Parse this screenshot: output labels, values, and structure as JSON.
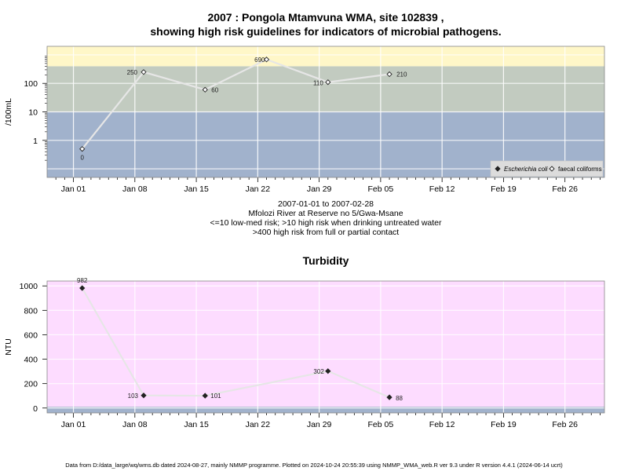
{
  "chart_data": [
    {
      "type": "line",
      "title_line1": "2007 : Pongola Mtamvuna WMA, site 102839 ,",
      "title_line2": "showing high risk guidelines for indicators of microbial pathogens.",
      "ylabel": "/100mL",
      "yscale": "log",
      "yticks": [
        "1",
        "10",
        "100"
      ],
      "xticks": [
        "Jan 01",
        "Jan 08",
        "Jan 15",
        "Jan 22",
        "Jan 29",
        "Feb 05",
        "Feb 12",
        "Feb 19",
        "Feb 26"
      ],
      "bands": [
        {
          "label": "<=10 low-med risk",
          "from": 0.05,
          "to": 10,
          "color": "#a1b2cc"
        },
        {
          "label": ">10 high risk when drinking untreated water",
          "from": 10,
          "to": 400,
          "color": "#c2cbc0"
        },
        {
          "label": ">400 high risk from full or partial contact",
          "from": 400,
          "to": 2000,
          "color": "#fff7c8"
        }
      ],
      "series": [
        {
          "name": "Escherichia coli",
          "marker": "filled-diamond",
          "x": [],
          "values": []
        },
        {
          "name": "faecal coliforms",
          "marker": "open-diamond",
          "x": [
            "2007-01-02",
            "2007-01-09",
            "2007-01-16",
            "2007-01-23",
            "2007-01-30",
            "2007-02-06"
          ],
          "values": [
            0.5,
            250,
            60,
            690,
            110,
            210
          ],
          "labels": [
            "0",
            "250",
            "60",
            "690",
            "110",
            "210"
          ]
        }
      ],
      "caption": [
        "2007-01-01 to 2007-02-28",
        "Mfolozi River at Reserve no 5/Gwa-Msane",
        "<=10 low-med risk; >10 high risk when drinking untreated water",
        ">400 high risk from full or partial contact"
      ],
      "legend_position": "bottom-right"
    },
    {
      "type": "line",
      "title": "Turbidity",
      "ylabel": "NTU",
      "ylim": [
        -40,
        1040
      ],
      "yticks": [
        "0",
        "200",
        "400",
        "600",
        "800",
        "1000"
      ],
      "xticks": [
        "Jan 01",
        "Jan 08",
        "Jan 15",
        "Jan 22",
        "Jan 29",
        "Feb 05",
        "Feb 12",
        "Feb 19",
        "Feb 26"
      ],
      "bands": [
        {
          "from": 10,
          "to": 1040,
          "color": "#fddcff"
        },
        {
          "from": -40,
          "to": 10,
          "color": "#a1b2cc"
        }
      ],
      "series": [
        {
          "name": "",
          "marker": "filled-diamond",
          "x": [
            "2007-01-02",
            "2007-01-09",
            "2007-01-16",
            "2007-01-30",
            "2007-02-06"
          ],
          "values": [
            982,
            103,
            101,
            302,
            88
          ],
          "labels": [
            "982",
            "103",
            "101",
            "302",
            "88"
          ]
        }
      ]
    }
  ],
  "footer": "Data from D:/data_large/wq/wms.db dated 2024-08-27, mainly NMMP programme. Plotted on 2024-10-24 20:55:39 using NMMP_WMA_web.R ver 9.3 under R version 4.4.1 (2024-06-14 ucrt)"
}
